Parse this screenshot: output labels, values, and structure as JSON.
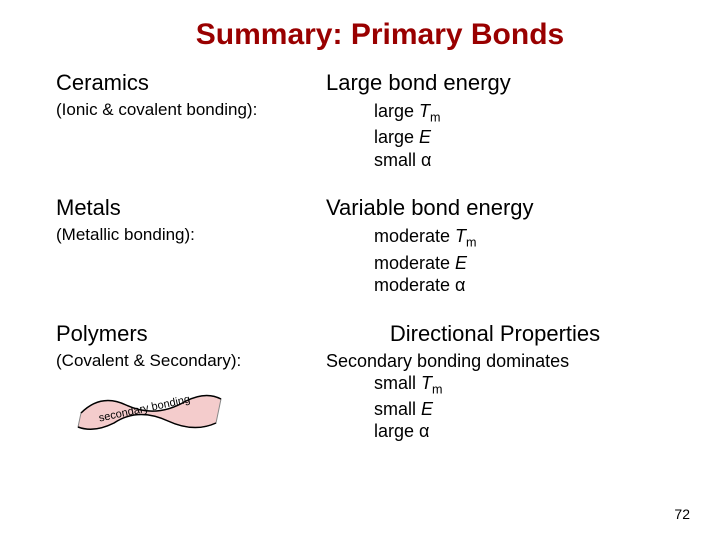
{
  "title": {
    "text": "Summary:  Primary Bonds",
    "color": "#990000"
  },
  "page_number": "72",
  "text_color": "#000000",
  "sections": [
    {
      "category": "Ceramics",
      "bonding": "(Ionic & covalent bonding):",
      "energy_label": "Large bond energy",
      "energy_align": "left",
      "secondary_note": "",
      "props": [
        {
          "prefix": "large ",
          "var": "T",
          "sub": "m",
          "suffix": ""
        },
        {
          "prefix": "large ",
          "var": "E",
          "sub": "",
          "suffix": ""
        },
        {
          "prefix": "small ",
          "var": "",
          "sub": "",
          "suffix": "α"
        }
      ]
    },
    {
      "category": "Metals",
      "bonding": "(Metallic bonding):",
      "energy_label": "Variable bond energy",
      "energy_align": "left",
      "secondary_note": "",
      "props": [
        {
          "prefix": "moderate ",
          "var": "T",
          "sub": "m",
          "suffix": ""
        },
        {
          "prefix": "moderate ",
          "var": "E",
          "sub": "",
          "suffix": ""
        },
        {
          "prefix": "moderate ",
          "var": "",
          "sub": "",
          "suffix": "α"
        }
      ]
    },
    {
      "category": "Polymers",
      "bonding": "(Covalent & Secondary):",
      "energy_label": "Directional Properties",
      "energy_align": "center",
      "secondary_note": "Secondary bonding dominates",
      "props": [
        {
          "prefix": "small ",
          "var": "T",
          "sub": "m",
          "suffix": ""
        },
        {
          "prefix": "small ",
          "var": "E",
          "sub": "",
          "suffix": ""
        },
        {
          "prefix": "large ",
          "var": "",
          "sub": "",
          "suffix": "α"
        }
      ]
    }
  ],
  "diagram": {
    "label": "secondary bonding",
    "fill": "#f4cccc",
    "stroke": "#888888",
    "line_stroke": "#000000",
    "width": 150,
    "height": 50
  }
}
